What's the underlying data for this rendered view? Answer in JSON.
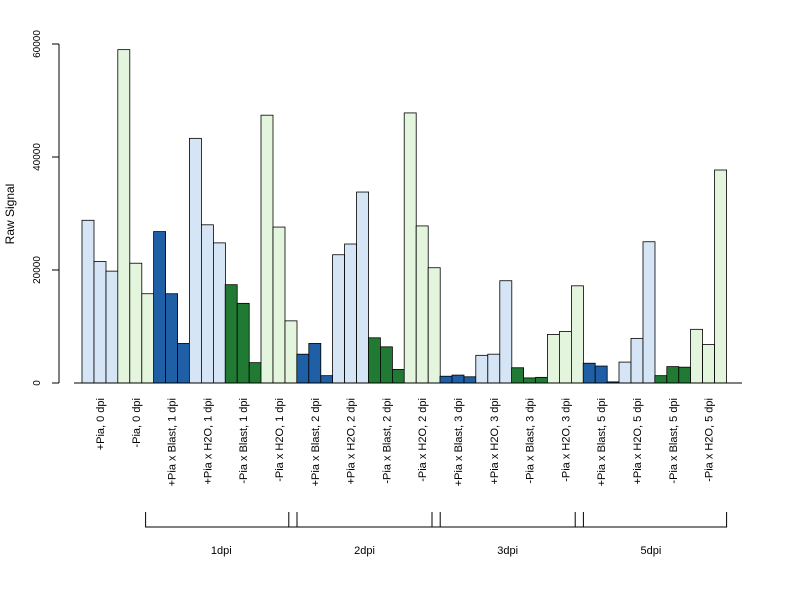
{
  "chart_data": {
    "type": "bar",
    "title": "",
    "xlabel": "",
    "ylabel": "Raw Signal",
    "ylim": [
      0,
      60000
    ],
    "yticks": [
      0,
      20000,
      40000,
      60000
    ],
    "grid": false,
    "colors": {
      "pia_plus_light": "#d6e5f5",
      "pia_plus_blast": "#1f5fa6",
      "pia_minus_light": "#e3f5dc",
      "pia_minus_blast": "#217a33",
      "axis": "#000000"
    },
    "categories": [
      {
        "label": "+Pia, 0 dpi",
        "color": "pia_plus_light",
        "values": [
          28800,
          21500,
          19800
        ]
      },
      {
        "label": "-Pia, 0 dpi",
        "color": "pia_minus_light",
        "values": [
          59000,
          21200,
          15800
        ]
      },
      {
        "label": "+Pia x Blast, 1 dpi",
        "color": "pia_plus_blast",
        "values": [
          26800,
          15800,
          7000
        ]
      },
      {
        "label": "+Pia x H2O, 1 dpi",
        "color": "pia_plus_light",
        "values": [
          43300,
          28000,
          24800
        ]
      },
      {
        "label": "-Pia x Blast, 1 dpi",
        "color": "pia_minus_blast",
        "values": [
          17400,
          14100,
          3600
        ]
      },
      {
        "label": "-Pia x H2O, 1 dpi",
        "color": "pia_minus_light",
        "values": [
          47400,
          27600,
          11000
        ]
      },
      {
        "label": "+Pia x Blast, 2 dpi",
        "color": "pia_plus_blast",
        "values": [
          5100,
          7000,
          1300
        ]
      },
      {
        "label": "+Pia x H2O, 2 dpi",
        "color": "pia_plus_light",
        "values": [
          22700,
          24600,
          33800
        ]
      },
      {
        "label": "-Pia x Blast, 2 dpi",
        "color": "pia_minus_blast",
        "values": [
          8000,
          6400,
          2400
        ]
      },
      {
        "label": "-Pia x H2O, 2 dpi",
        "color": "pia_minus_light",
        "values": [
          47800,
          27800,
          20400
        ]
      },
      {
        "label": "+Pia x Blast, 3 dpi",
        "color": "pia_plus_blast",
        "values": [
          1200,
          1400,
          1100
        ]
      },
      {
        "label": "+Pia x H2O, 3 dpi",
        "color": "pia_plus_light",
        "values": [
          4900,
          5100,
          18100
        ]
      },
      {
        "label": "-Pia x Blast, 3 dpi",
        "color": "pia_minus_blast",
        "values": [
          2700,
          900,
          1000
        ]
      },
      {
        "label": "-Pia x H2O, 3 dpi",
        "color": "pia_minus_light",
        "values": [
          8600,
          9100,
          17200
        ]
      },
      {
        "label": "+Pia x Blast, 5 dpi",
        "color": "pia_plus_blast",
        "values": [
          3500,
          3000,
          200
        ]
      },
      {
        "label": "+Pia x H2O, 5 dpi",
        "color": "pia_plus_light",
        "values": [
          3700,
          7900,
          25000
        ]
      },
      {
        "label": "-Pia x Blast, 5 dpi",
        "color": "pia_minus_blast",
        "values": [
          1300,
          2900,
          2800
        ]
      },
      {
        "label": "-Pia x H2O, 5 dpi",
        "color": "pia_minus_light",
        "values": [
          9500,
          6800,
          37700
        ]
      }
    ],
    "groups": [
      {
        "label": "1dpi",
        "first": 2,
        "last": 5
      },
      {
        "label": "2dpi",
        "first": 6,
        "last": 9
      },
      {
        "label": "3dpi",
        "first": 10,
        "last": 13
      },
      {
        "label": "5dpi",
        "first": 14,
        "last": 17
      }
    ]
  }
}
